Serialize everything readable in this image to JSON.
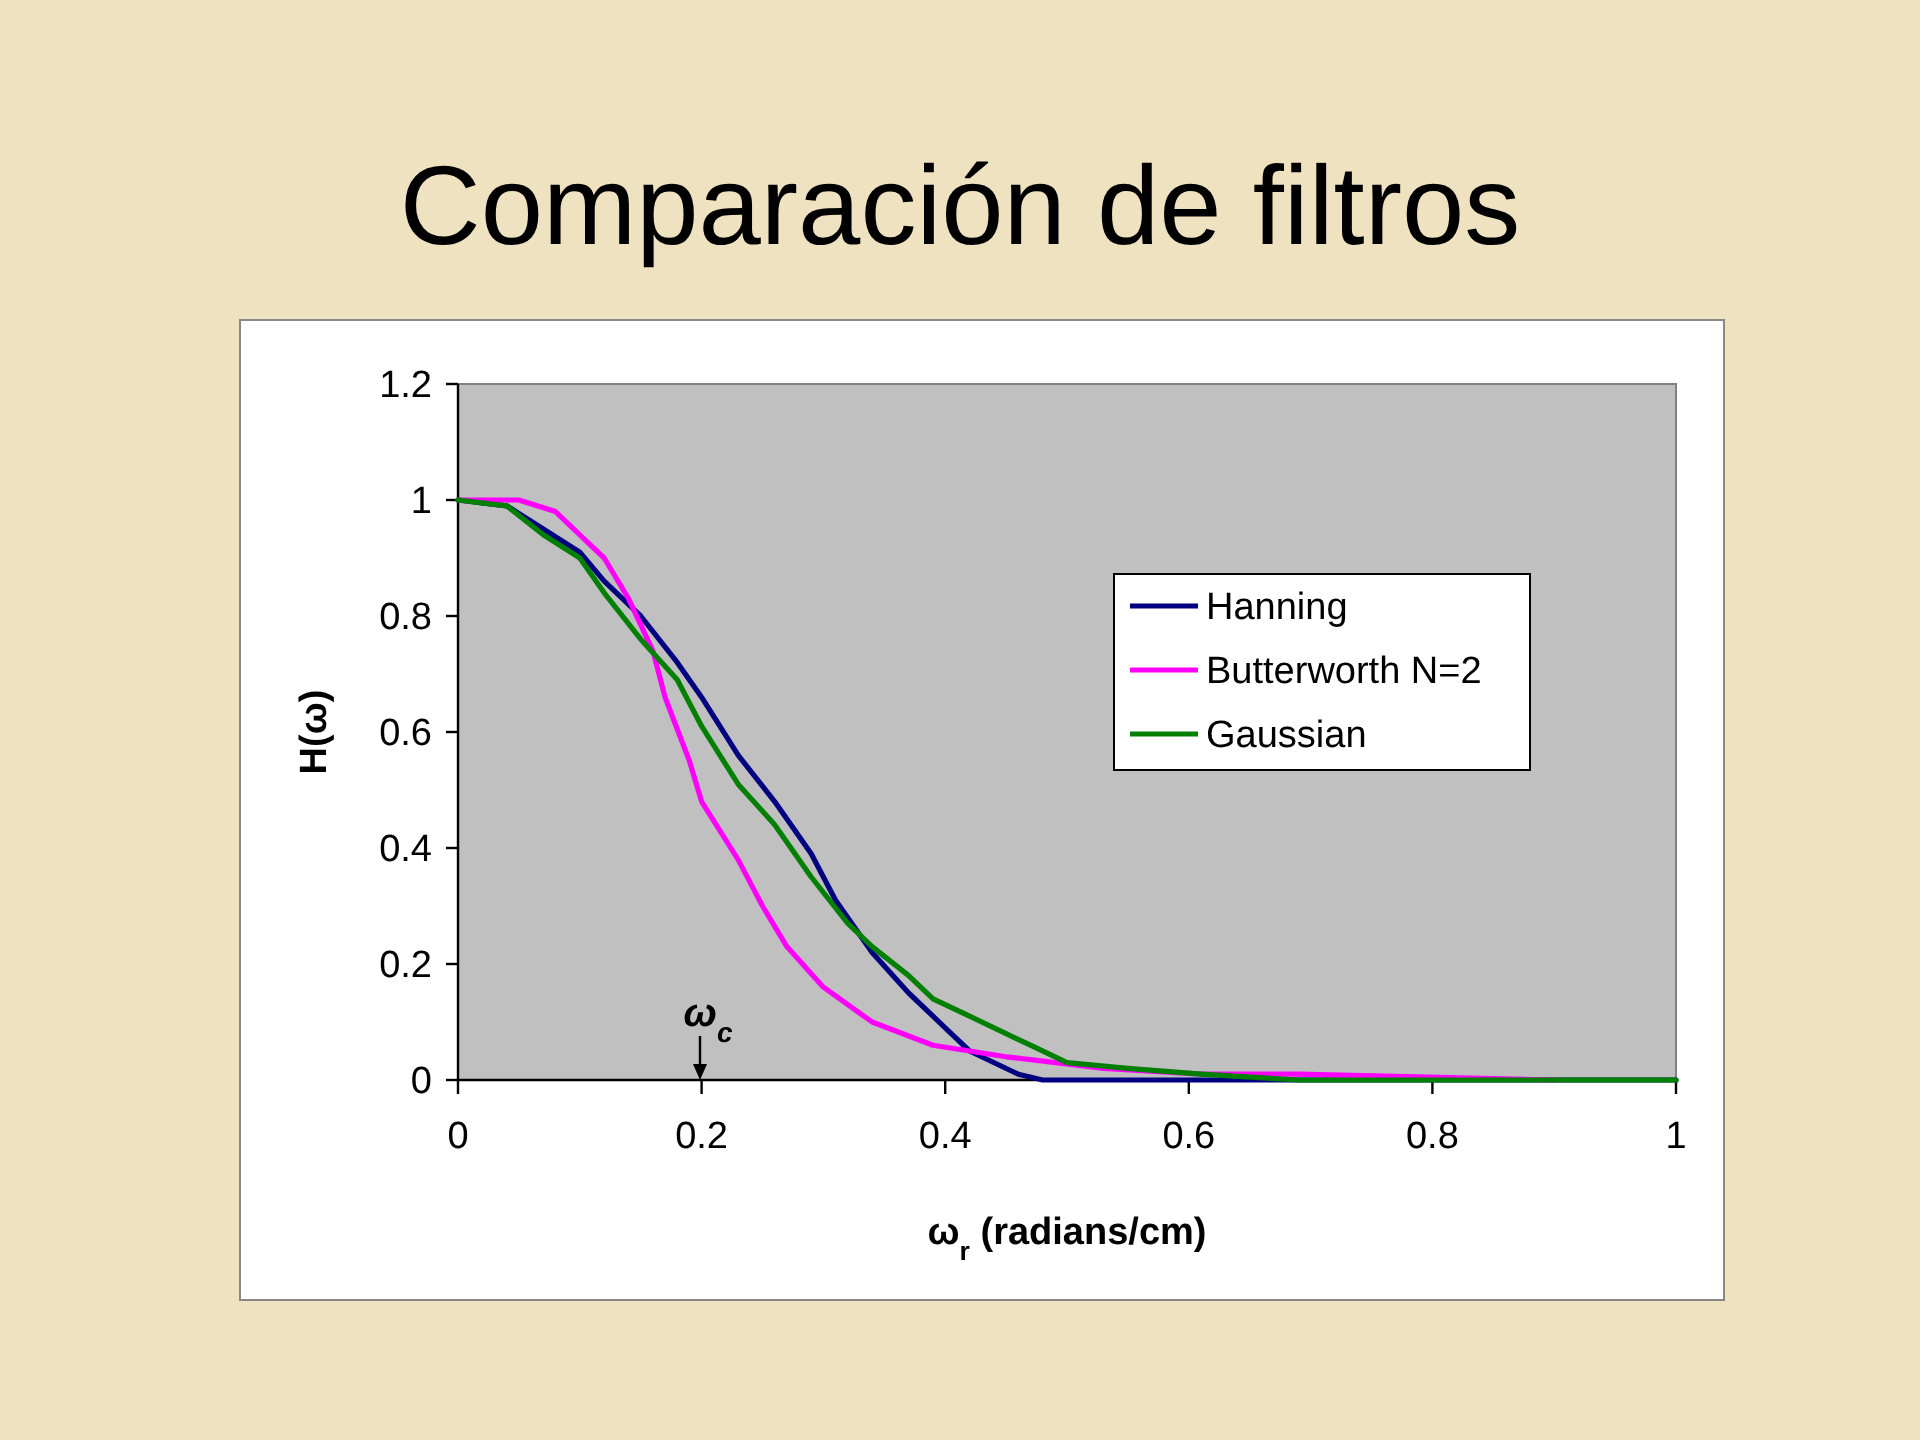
{
  "chart_data": {
    "type": "line",
    "title": "Comparación de filtros",
    "xlabel": "ω$_{r}$ (radians/cm)",
    "ylabel": "H(ω)",
    "xlim": [
      0,
      1
    ],
    "xticks": [
      0,
      0.2,
      0.4,
      0.6,
      0.8,
      1
    ],
    "ylim": [
      0,
      1.2
    ],
    "yticks": [
      0,
      0.2,
      0.4,
      0.6,
      0.8,
      1,
      1.2
    ],
    "grid": false,
    "legend": "right",
    "series": [
      {
        "name": "Hanning",
        "color": "#000080",
        "x": [
          0,
          0.04,
          0.07,
          0.1,
          0.12,
          0.15,
          0.18,
          0.2,
          0.23,
          0.26,
          0.29,
          0.31,
          0.34,
          0.37,
          0.4,
          0.42,
          0.46,
          0.48,
          0.5,
          1
        ],
        "values": [
          1,
          0.99,
          0.95,
          0.91,
          0.86,
          0.8,
          0.72,
          0.66,
          0.56,
          0.48,
          0.39,
          0.31,
          0.22,
          0.15,
          0.09,
          0.05,
          0.01,
          0,
          0,
          0
        ]
      },
      {
        "name": "Butterworth N=2",
        "color": "#ff00ff",
        "x": [
          0,
          0.02,
          0.05,
          0.08,
          0.1,
          0.12,
          0.14,
          0.16,
          0.17,
          0.19,
          0.2,
          0.23,
          0.25,
          0.27,
          0.3,
          0.34,
          0.39,
          0.45,
          0.53,
          0.61,
          0.69,
          0.9
        ],
        "values": [
          1,
          1,
          1,
          0.98,
          0.94,
          0.9,
          0.83,
          0.74,
          0.66,
          0.55,
          0.48,
          0.38,
          0.3,
          0.23,
          0.16,
          0.1,
          0.06,
          0.04,
          0.02,
          0.01,
          0.01,
          0
        ]
      },
      {
        "name": "Gaussian",
        "color": "#008000",
        "x": [
          0,
          0.04,
          0.07,
          0.1,
          0.12,
          0.15,
          0.18,
          0.2,
          0.23,
          0.26,
          0.29,
          0.32,
          0.34,
          0.37,
          0.39,
          0.42,
          0.45,
          0.47,
          0.5,
          0.55,
          0.61,
          0.69,
          1
        ],
        "values": [
          1,
          0.99,
          0.94,
          0.9,
          0.84,
          0.76,
          0.69,
          0.61,
          0.51,
          0.44,
          0.35,
          0.27,
          0.23,
          0.18,
          0.14,
          0.11,
          0.08,
          0.06,
          0.03,
          0.02,
          0.01,
          0,
          0
        ]
      }
    ],
    "annotations": [
      "ω$_{c}$"
    ]
  }
}
